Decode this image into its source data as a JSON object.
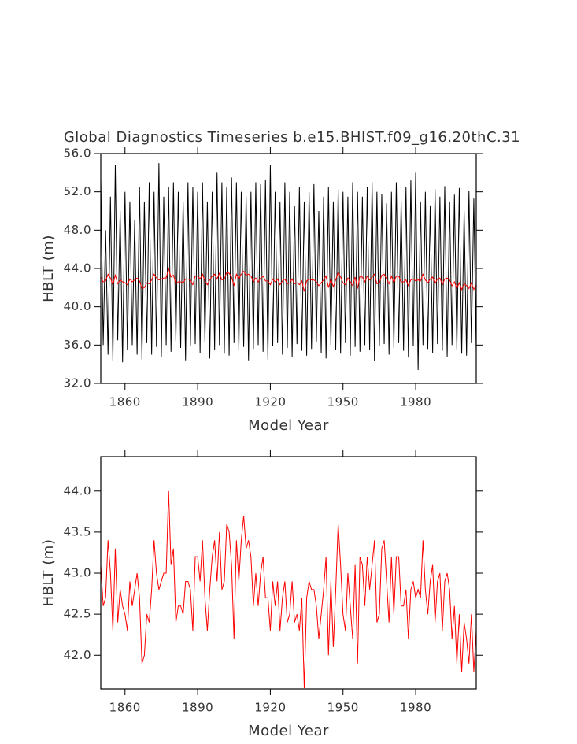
{
  "chart_data": [
    {
      "type": "line",
      "title": "Global Diagnostics Timeseries b.e15.BHIST.f09_g16.20thC.31",
      "xlabel": "Model Year",
      "ylabel": "HBLT (m)",
      "xlim": [
        1850,
        2005
      ],
      "ylim": [
        32,
        56
      ],
      "xticks": [
        1860,
        1890,
        1920,
        1950,
        1980
      ],
      "yticks": [
        {
          "value": 32,
          "label": "32.0"
        },
        {
          "value": 36,
          "label": "36.0"
        },
        {
          "value": 40,
          "label": "40.0"
        },
        {
          "value": 44,
          "label": "44.0"
        },
        {
          "value": 48,
          "label": "48.0"
        },
        {
          "value": 52,
          "label": "52.0"
        },
        {
          "value": 56,
          "label": "56.0"
        }
      ],
      "x": [
        1850,
        1851,
        1852,
        1853,
        1854,
        1855,
        1856,
        1857,
        1858,
        1859,
        1860,
        1861,
        1862,
        1863,
        1864,
        1865,
        1866,
        1867,
        1868,
        1869,
        1870,
        1871,
        1872,
        1873,
        1874,
        1875,
        1876,
        1877,
        1878,
        1879,
        1880,
        1881,
        1882,
        1883,
        1884,
        1885,
        1886,
        1887,
        1888,
        1889,
        1890,
        1891,
        1892,
        1893,
        1894,
        1895,
        1896,
        1897,
        1898,
        1899,
        1900,
        1901,
        1902,
        1903,
        1904,
        1905,
        1906,
        1907,
        1908,
        1909,
        1910,
        1911,
        1912,
        1913,
        1914,
        1915,
        1916,
        1917,
        1918,
        1919,
        1920,
        1921,
        1922,
        1923,
        1924,
        1925,
        1926,
        1927,
        1928,
        1929,
        1930,
        1931,
        1932,
        1933,
        1934,
        1935,
        1936,
        1937,
        1938,
        1939,
        1940,
        1941,
        1942,
        1943,
        1944,
        1945,
        1946,
        1947,
        1948,
        1949,
        1950,
        1951,
        1952,
        1953,
        1954,
        1955,
        1956,
        1957,
        1958,
        1959,
        1960,
        1961,
        1962,
        1963,
        1964,
        1965,
        1966,
        1967,
        1968,
        1969,
        1970,
        1971,
        1972,
        1973,
        1974,
        1975,
        1976,
        1977,
        1978,
        1979,
        1980,
        1981,
        1982,
        1983,
        1984,
        1985,
        1986,
        1987,
        1988,
        1989,
        1990,
        1991,
        1992,
        1993,
        1994,
        1995,
        1996,
        1997,
        1998,
        1999,
        2000,
        2001,
        2002,
        2003,
        2004,
        2005
      ],
      "series": [
        {
          "color": "#000000",
          "values": [
            53.5,
            36,
            48,
            35,
            51.5,
            34.3,
            54.8,
            36.5,
            50,
            34.2,
            52,
            35.5,
            51,
            36,
            49,
            35,
            52.5,
            34.5,
            51,
            36.2,
            53,
            35,
            52,
            35.8,
            55,
            34.8,
            51.5,
            36,
            52.5,
            35.3,
            53,
            36.4,
            52,
            35.7,
            51,
            34.4,
            53,
            35.9,
            52.5,
            36.1,
            52,
            35.2,
            53,
            36.3,
            51,
            34.6,
            52,
            35.5,
            54,
            36,
            53,
            35.1,
            52.5,
            34.9,
            53.5,
            36.2,
            53,
            35.4,
            52,
            35.8,
            51.5,
            34.4,
            52,
            35.6,
            53,
            36,
            52.8,
            35.3,
            53.3,
            34.5,
            54.8,
            35.9,
            52,
            36.2,
            51,
            35,
            53,
            35.7,
            52,
            34.8,
            50.5,
            36.1,
            52.5,
            35.4,
            51,
            34.9,
            52,
            35.6,
            52.8,
            36.3,
            50,
            35.2,
            51.5,
            34.6,
            52.5,
            36,
            51,
            35.5,
            52.3,
            35.1,
            52,
            36.2,
            51.5,
            34.9,
            53,
            35.8,
            52,
            35.3,
            51.5,
            36,
            52.5,
            35.5,
            53,
            34.3,
            52,
            35.9,
            51.8,
            36.1,
            50.8,
            35,
            52,
            35.7,
            53,
            36.2,
            51,
            35.4,
            52.5,
            34.7,
            53.2,
            35.9,
            54,
            33.4,
            51,
            36,
            52,
            35.6,
            50.5,
            35.2,
            52.3,
            36.1,
            51.5,
            35.4,
            52.6,
            34.8,
            51,
            36,
            51.7,
            35.5,
            52.4,
            35.1,
            50,
            34.9,
            52.1,
            36.2,
            51.3,
            35.3
          ]
        },
        {
          "color": "#ff0000",
          "values": [
            43.1,
            42.6,
            42.7,
            43.4,
            43.0,
            42.3,
            43.3,
            42.4,
            42.8,
            42.6,
            42.5,
            42.3,
            42.9,
            42.6,
            42.8,
            43.0,
            42.7,
            41.9,
            42.0,
            42.5,
            42.4,
            42.8,
            43.4,
            43.0,
            42.8,
            42.9,
            43.0,
            43.0,
            44.0,
            43.1,
            43.3,
            42.4,
            42.6,
            42.6,
            42.5,
            42.9,
            42.9,
            42.8,
            42.3,
            43.2,
            43.2,
            42.9,
            43.4,
            42.7,
            42.3,
            42.8,
            43.2,
            43.4,
            42.9,
            43.5,
            42.8,
            42.9,
            43.6,
            43.5,
            43.1,
            42.2,
            43.4,
            42.9,
            43.4,
            43.7,
            43.3,
            43.4,
            43.2,
            42.6,
            43.0,
            42.6,
            43.0,
            43.2,
            42.7,
            42.7,
            42.3,
            42.9,
            42.6,
            42.9,
            42.3,
            42.7,
            42.9,
            42.4,
            42.5,
            42.9,
            42.4,
            42.5,
            42.3,
            42.7,
            41.6,
            42.7,
            42.9,
            42.8,
            42.8,
            42.6,
            42.2,
            42.5,
            42.8,
            43.2,
            42.0,
            42.9,
            42.1,
            42.8,
            43.6,
            43.1,
            42.5,
            42.3,
            43.0,
            42.6,
            42.2,
            43.1,
            41.9,
            43.2,
            43.1,
            42.6,
            43.2,
            42.8,
            43.1,
            43.4,
            42.4,
            42.5,
            43.3,
            43.4,
            42.9,
            42.4,
            43.2,
            42.5,
            43.2,
            43.2,
            42.6,
            42.6,
            42.8,
            42.2,
            42.8,
            42.9,
            42.7,
            42.8,
            42.7,
            43.4,
            42.8,
            42.5,
            42.9,
            43.1,
            42.4,
            42.9,
            43.0,
            42.3,
            42.9,
            43.0,
            42.8,
            42.2,
            42.6,
            41.9,
            42.5,
            41.8,
            42.4,
            42.2,
            41.9,
            42.5,
            41.8,
            42.3
          ]
        }
      ]
    },
    {
      "type": "line",
      "xlabel": "Model Year",
      "ylabel": "HBLT (m)",
      "xlim": [
        1850,
        2005
      ],
      "ylim": [
        41.59,
        44.42
      ],
      "xticks": [
        1860,
        1890,
        1920,
        1950,
        1980
      ],
      "yticks": [
        {
          "value": 42,
          "label": "42.0"
        },
        42.5,
        {
          "value": 43,
          "label": "43.0"
        },
        43.5,
        {
          "value": 44,
          "label": "44.0"
        }
      ],
      "x": [
        1850,
        1851,
        1852,
        1853,
        1854,
        1855,
        1856,
        1857,
        1858,
        1859,
        1860,
        1861,
        1862,
        1863,
        1864,
        1865,
        1866,
        1867,
        1868,
        1869,
        1870,
        1871,
        1872,
        1873,
        1874,
        1875,
        1876,
        1877,
        1878,
        1879,
        1880,
        1881,
        1882,
        1883,
        1884,
        1885,
        1886,
        1887,
        1888,
        1889,
        1890,
        1891,
        1892,
        1893,
        1894,
        1895,
        1896,
        1897,
        1898,
        1899,
        1900,
        1901,
        1902,
        1903,
        1904,
        1905,
        1906,
        1907,
        1908,
        1909,
        1910,
        1911,
        1912,
        1913,
        1914,
        1915,
        1916,
        1917,
        1918,
        1919,
        1920,
        1921,
        1922,
        1923,
        1924,
        1925,
        1926,
        1927,
        1928,
        1929,
        1930,
        1931,
        1932,
        1933,
        1934,
        1935,
        1936,
        1937,
        1938,
        1939,
        1940,
        1941,
        1942,
        1943,
        1944,
        1945,
        1946,
        1947,
        1948,
        1949,
        1950,
        1951,
        1952,
        1953,
        1954,
        1955,
        1956,
        1957,
        1958,
        1959,
        1960,
        1961,
        1962,
        1963,
        1964,
        1965,
        1966,
        1967,
        1968,
        1969,
        1970,
        1971,
        1972,
        1973,
        1974,
        1975,
        1976,
        1977,
        1978,
        1979,
        1980,
        1981,
        1982,
        1983,
        1984,
        1985,
        1986,
        1987,
        1988,
        1989,
        1990,
        1991,
        1992,
        1993,
        1994,
        1995,
        1996,
        1997,
        1998,
        1999,
        2000,
        2001,
        2002,
        2003,
        2004,
        2005
      ],
      "series": [
        {
          "color": "#ff0000",
          "values": [
            43.1,
            42.6,
            42.7,
            43.4,
            43.0,
            42.3,
            43.3,
            42.4,
            42.8,
            42.6,
            42.5,
            42.3,
            42.9,
            42.6,
            42.8,
            43.0,
            42.7,
            41.9,
            42.0,
            42.5,
            42.4,
            42.8,
            43.4,
            43.0,
            42.8,
            42.9,
            43.0,
            43.0,
            44.0,
            43.1,
            43.3,
            42.4,
            42.6,
            42.6,
            42.5,
            42.9,
            42.9,
            42.8,
            42.3,
            43.2,
            43.2,
            42.9,
            43.4,
            42.7,
            42.3,
            42.8,
            43.2,
            43.4,
            42.9,
            43.5,
            42.8,
            42.9,
            43.6,
            43.5,
            43.1,
            42.2,
            43.4,
            42.9,
            43.4,
            43.7,
            43.3,
            43.4,
            43.2,
            42.6,
            43.0,
            42.6,
            43.0,
            43.2,
            42.7,
            42.7,
            42.3,
            42.9,
            42.6,
            42.9,
            42.3,
            42.7,
            42.9,
            42.4,
            42.5,
            42.9,
            42.4,
            42.5,
            42.3,
            42.7,
            41.6,
            42.7,
            42.9,
            42.8,
            42.8,
            42.6,
            42.2,
            42.5,
            42.8,
            43.2,
            42.0,
            42.9,
            42.1,
            42.8,
            43.6,
            43.1,
            42.5,
            42.3,
            43.0,
            42.6,
            42.2,
            43.1,
            41.9,
            43.2,
            43.1,
            42.6,
            43.2,
            42.8,
            43.1,
            43.4,
            42.4,
            42.5,
            43.3,
            43.4,
            42.9,
            42.4,
            43.2,
            42.5,
            43.2,
            43.2,
            42.6,
            42.6,
            42.8,
            42.2,
            42.8,
            42.9,
            42.7,
            42.8,
            42.7,
            43.4,
            42.8,
            42.5,
            42.9,
            43.1,
            42.4,
            42.9,
            43.0,
            42.3,
            42.9,
            43.0,
            42.8,
            42.2,
            42.6,
            41.9,
            42.5,
            41.8,
            42.4,
            42.2,
            41.9,
            42.5,
            41.8,
            42.3
          ]
        }
      ]
    }
  ]
}
